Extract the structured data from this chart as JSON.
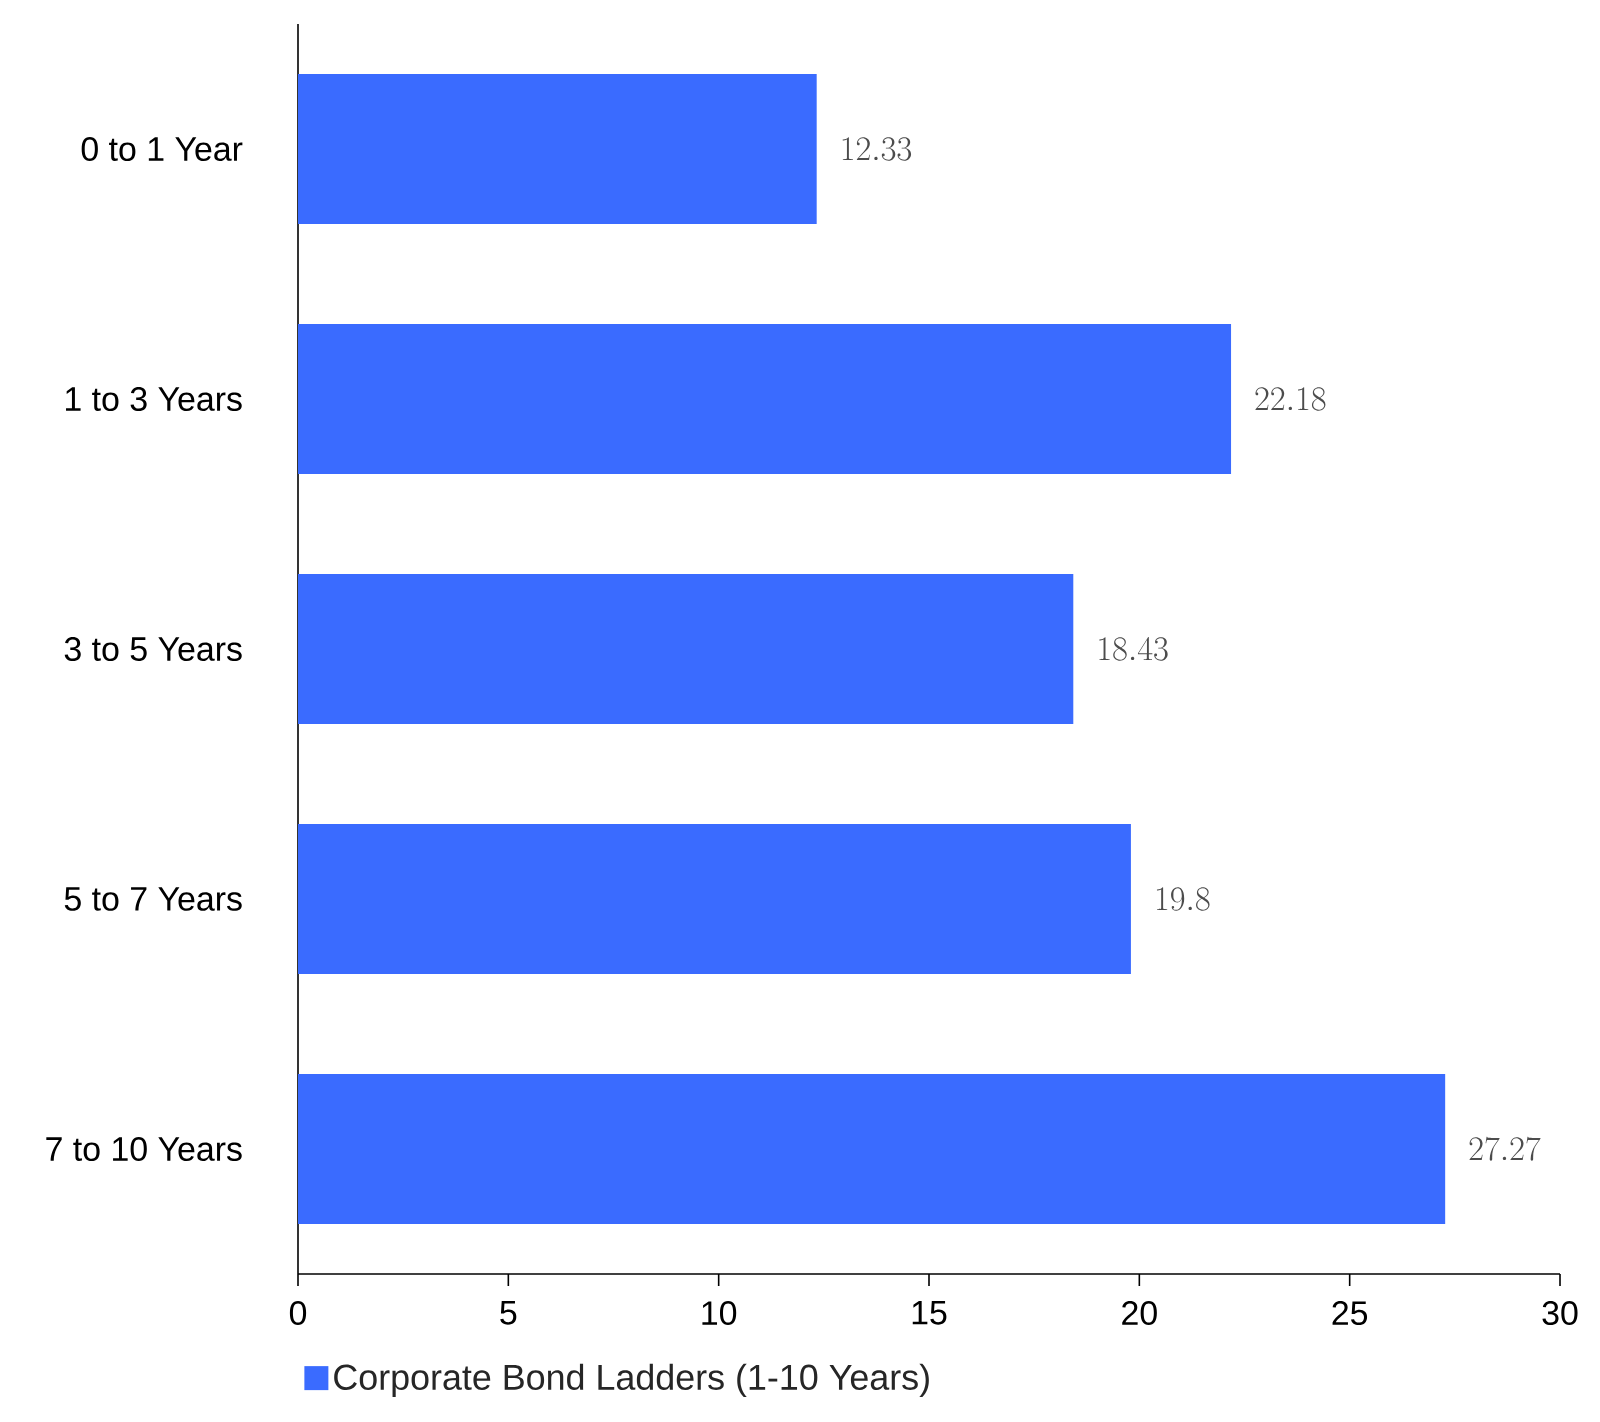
{
  "chart_data": {
    "type": "bar",
    "orientation": "horizontal",
    "categories": [
      "0 to 1 Year",
      "1 to 3 Years",
      "3 to 5 Years",
      "5 to 7 Years",
      "7 to 10 Years"
    ],
    "series": [
      {
        "name": "Corporate Bond Ladders (1-10 Years)",
        "color": "#3a6bff",
        "values": [
          12.33,
          22.18,
          18.43,
          19.8,
          27.27
        ]
      }
    ],
    "xlim": [
      0,
      30
    ],
    "xticks": [
      0,
      5,
      10,
      15,
      20,
      25,
      30
    ],
    "data_labels": true,
    "legend": "bottom",
    "grid": false
  }
}
